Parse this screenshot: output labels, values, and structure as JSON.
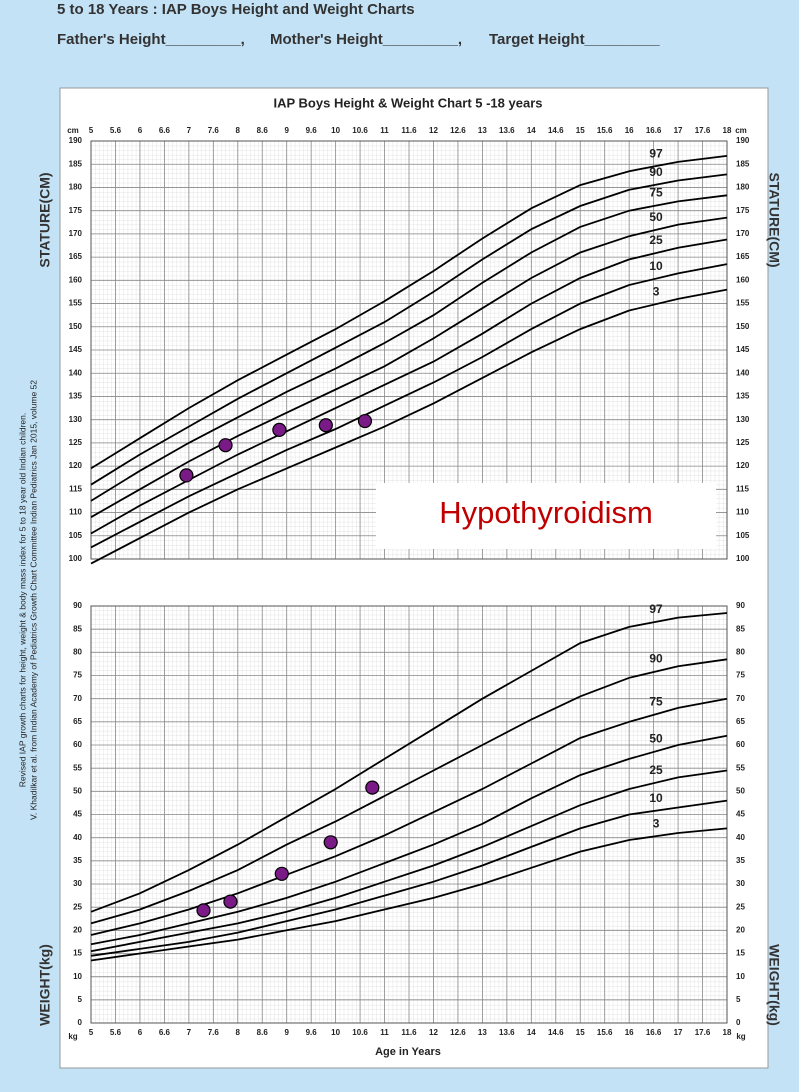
{
  "header": {
    "title": "5 to 18 Years : IAP Boys Height and Weight Charts",
    "fields": [
      "Father's Height_________,",
      "Mother's Height_________,",
      "Target Height_________"
    ]
  },
  "citation": [
    "Revised IAP growth charts for height, weight & body mass index for 5 to 18 year old Indian children.",
    "V. Khadilkar et al. from Indian Academy of Pediatrics Growth Chart Committee Indian Pediatrics  Jan 2015, volume 52"
  ],
  "annotation": "Hypothyroidism",
  "chart_data": [
    {
      "type": "line",
      "title": "IAP Boys Height & Weight Chart 5 -18 years",
      "ylabel": "STATURE(CM)",
      "unit": "cm",
      "x": [
        5,
        6,
        7,
        8,
        9,
        10,
        11,
        12,
        13,
        14,
        15,
        16,
        17,
        18
      ],
      "xlim": [
        5,
        18
      ],
      "xticks": [
        5,
        {
          "value": 5.5,
          "label": "5.6"
        },
        6,
        {
          "value": 6.5,
          "label": "6.6"
        },
        7,
        {
          "value": 7.5,
          "label": "7.6"
        },
        8,
        {
          "value": 8.5,
          "label": "8.6"
        },
        9,
        {
          "value": 9.5,
          "label": "9.6"
        },
        10,
        {
          "value": 10.5,
          "label": "10.6"
        },
        11,
        {
          "value": 11.5,
          "label": "11.6"
        },
        12,
        {
          "value": 12.5,
          "label": "12.6"
        },
        13,
        {
          "value": 13.5,
          "label": "13.6"
        },
        14,
        {
          "value": 14.5,
          "label": "14.6"
        },
        15,
        {
          "value": 15.5,
          "label": "15.6"
        },
        16,
        {
          "value": 16.5,
          "label": "16.6"
        },
        17,
        {
          "value": 17.5,
          "label": "17.6"
        },
        18
      ],
      "ylim": [
        100,
        190
      ],
      "yticks": [
        100,
        105,
        110,
        115,
        120,
        125,
        130,
        135,
        140,
        145,
        150,
        155,
        160,
        165,
        170,
        175,
        180,
        185,
        190
      ],
      "grid": true,
      "series": [
        {
          "name": "97",
          "color": "#000000",
          "values": [
            119.5,
            126,
            132.5,
            138.5,
            144,
            149.5,
            155.5,
            162,
            169,
            175.5,
            180.5,
            183.5,
            185.5,
            186.8
          ]
        },
        {
          "name": "90",
          "color": "#000000",
          "values": [
            116,
            122.5,
            128.5,
            134.5,
            140,
            145.5,
            151,
            157.5,
            164.5,
            171,
            176,
            179.5,
            181.5,
            182.8
          ]
        },
        {
          "name": "75",
          "color": "#000000",
          "values": [
            112.5,
            119,
            125,
            130.5,
            136,
            141,
            146.5,
            152.5,
            159.5,
            166,
            171.5,
            175,
            177,
            178.3
          ]
        },
        {
          "name": "50",
          "color": "#000000",
          "values": [
            109,
            115,
            121,
            126.5,
            131.5,
            136.5,
            141.5,
            147.5,
            154,
            160.5,
            166,
            169.5,
            172,
            173.5
          ]
        },
        {
          "name": "25",
          "color": "#000000",
          "values": [
            105.5,
            111.5,
            117,
            122.5,
            127.5,
            132.5,
            137.5,
            142.5,
            148.5,
            155,
            160.5,
            164.5,
            167,
            168.8
          ]
        },
        {
          "name": "10",
          "color": "#000000",
          "values": [
            102.5,
            108,
            113.5,
            118.5,
            123.5,
            128,
            133,
            138,
            143.5,
            149.5,
            155,
            159,
            161.5,
            163.5
          ]
        },
        {
          "name": "3",
          "color": "#000000",
          "values": [
            99,
            104.5,
            110,
            115,
            119.5,
            124,
            128.5,
            133.5,
            139,
            144.5,
            149.5,
            153.5,
            156,
            158
          ]
        }
      ],
      "points": {
        "color": "#7a1a86",
        "x": [
          6.95,
          7.75,
          8.85,
          9.8,
          10.6
        ],
        "values": [
          118,
          124.5,
          127.8,
          128.8,
          129.7
        ]
      }
    },
    {
      "type": "line",
      "ylabel": "WEIGHT(kg)",
      "unit": "kg",
      "xlabel": "Age in Years",
      "x": [
        5,
        6,
        7,
        8,
        9,
        10,
        11,
        12,
        13,
        14,
        15,
        16,
        17,
        18
      ],
      "xlim": [
        5,
        18
      ],
      "xticks": [
        5,
        {
          "value": 5.5,
          "label": "5.6"
        },
        6,
        {
          "value": 6.5,
          "label": "6.6"
        },
        7,
        {
          "value": 7.5,
          "label": "7.6"
        },
        8,
        {
          "value": 8.5,
          "label": "8.6"
        },
        9,
        {
          "value": 9.5,
          "label": "9.6"
        },
        10,
        {
          "value": 10.5,
          "label": "10.6"
        },
        11,
        {
          "value": 11.5,
          "label": "11.6"
        },
        12,
        {
          "value": 12.5,
          "label": "12.6"
        },
        13,
        {
          "value": 13.5,
          "label": "13.6"
        },
        14,
        {
          "value": 14.5,
          "label": "14.6"
        },
        15,
        {
          "value": 15.5,
          "label": "15.6"
        },
        16,
        {
          "value": 16.5,
          "label": "16.6"
        },
        17,
        {
          "value": 17.5,
          "label": "17.6"
        },
        18
      ],
      "ylim": [
        0,
        90
      ],
      "yticks": [
        0,
        5,
        10,
        15,
        20,
        25,
        30,
        35,
        40,
        45,
        50,
        55,
        60,
        65,
        70,
        75,
        80,
        85,
        90
      ],
      "grid": true,
      "series": [
        {
          "name": "97",
          "color": "#000000",
          "values": [
            24,
            28,
            33,
            38.5,
            44.5,
            50.5,
            57,
            63.5,
            70,
            76,
            82,
            85.5,
            87.5,
            88.5
          ]
        },
        {
          "name": "90",
          "color": "#000000",
          "values": [
            21.5,
            24.5,
            28.5,
            33,
            38.5,
            43.5,
            49,
            54.5,
            60,
            65.5,
            70.5,
            74.5,
            77,
            78.5
          ]
        },
        {
          "name": "75",
          "color": "#000000",
          "values": [
            19,
            21.5,
            24.5,
            28,
            32,
            36,
            40.5,
            45.5,
            50.5,
            56,
            61.5,
            65,
            68,
            70
          ]
        },
        {
          "name": "50",
          "color": "#000000",
          "values": [
            17,
            19,
            21.5,
            24,
            27,
            30.5,
            34.5,
            38.5,
            43,
            48.5,
            53.5,
            57,
            60,
            62
          ]
        },
        {
          "name": "25",
          "color": "#000000",
          "values": [
            15.5,
            17.5,
            19.5,
            21.5,
            24,
            27,
            30.5,
            34,
            38,
            42.5,
            47,
            50.5,
            53,
            54.5
          ]
        },
        {
          "name": "10",
          "color": "#000000",
          "values": [
            14.5,
            16,
            17.5,
            19.5,
            22,
            24.5,
            27.5,
            30.5,
            34,
            38,
            42,
            45,
            46.5,
            48
          ]
        },
        {
          "name": "3",
          "color": "#000000",
          "values": [
            13.5,
            15,
            16.5,
            18,
            20,
            22,
            24.5,
            27,
            30,
            33.5,
            37,
            39.5,
            41,
            42
          ]
        }
      ],
      "points": {
        "color": "#7a1a86",
        "x": [
          7.3,
          7.85,
          8.9,
          9.9,
          10.75
        ],
        "values": [
          24.3,
          26.2,
          32.2,
          39,
          50.8
        ]
      }
    }
  ]
}
